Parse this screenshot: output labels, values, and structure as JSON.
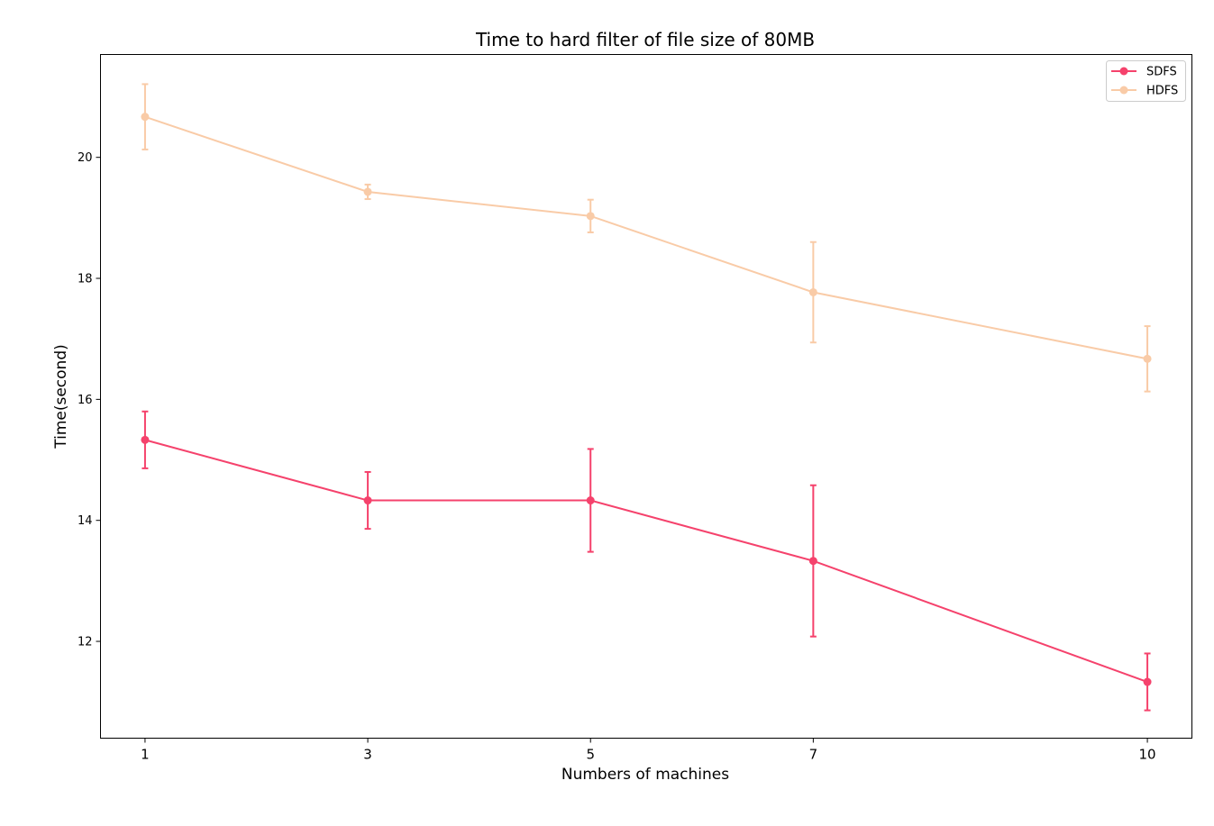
{
  "chart_data": {
    "type": "line",
    "title": "Time to hard filter of file size of 80MB",
    "xlabel": "Numbers of machines",
    "ylabel": "Time(second)",
    "x": [
      1,
      3,
      5,
      7,
      10
    ],
    "x_tick_labels": [
      "1",
      "3",
      "5",
      "7",
      "10"
    ],
    "y_ticks": [
      12,
      14,
      16,
      18,
      20
    ],
    "y_tick_labels": [
      "12",
      "14",
      "16",
      "18",
      "20"
    ],
    "xlim": [
      0.6,
      10.4
    ],
    "ylim": [
      10.4,
      21.7
    ],
    "grid": false,
    "legend_position": "top-right",
    "series": [
      {
        "name": "SDFS",
        "color": "#f5426c",
        "values": [
          15.33,
          14.33,
          14.33,
          13.33,
          11.33
        ],
        "errors": [
          0.47,
          0.47,
          0.85,
          1.25,
          0.47
        ]
      },
      {
        "name": "HDFS",
        "color": "#f9cba7",
        "values": [
          20.67,
          19.43,
          19.03,
          17.77,
          16.67
        ],
        "errors": [
          0.54,
          0.12,
          0.27,
          0.83,
          0.54
        ]
      }
    ]
  }
}
